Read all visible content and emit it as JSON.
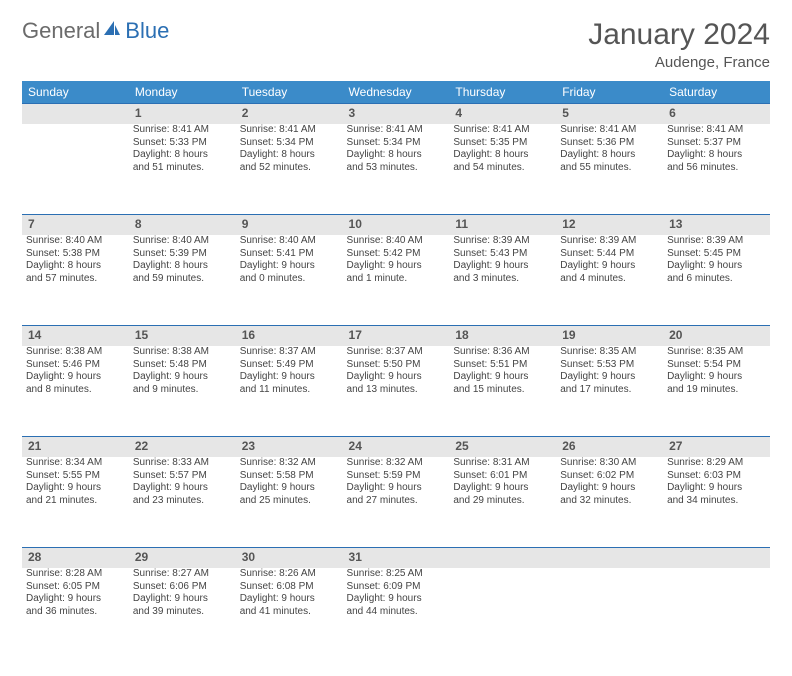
{
  "brand": {
    "part1": "General",
    "part2": "Blue"
  },
  "title": {
    "month": "January 2024",
    "location": "Audenge, France"
  },
  "dayHeaders": [
    "Sunday",
    "Monday",
    "Tuesday",
    "Wednesday",
    "Thursday",
    "Friday",
    "Saturday"
  ],
  "styling": {
    "header_bg": "#3b8bc9",
    "header_text": "#ffffff",
    "daynum_bg": "#e6e6e6",
    "daynum_border": "#2b6fb3",
    "body_text": "#444444",
    "title_text": "#555555",
    "logo_gray": "#6b6b6b",
    "logo_blue": "#2b6fb3",
    "th_fontsize": 12,
    "daynum_fontsize": 12,
    "detail_fontsize": 10
  },
  "weeks": [
    [
      null,
      {
        "n": "1",
        "sr": "Sunrise: 8:41 AM",
        "ss": "Sunset: 5:33 PM",
        "d1": "Daylight: 8 hours",
        "d2": "and 51 minutes."
      },
      {
        "n": "2",
        "sr": "Sunrise: 8:41 AM",
        "ss": "Sunset: 5:34 PM",
        "d1": "Daylight: 8 hours",
        "d2": "and 52 minutes."
      },
      {
        "n": "3",
        "sr": "Sunrise: 8:41 AM",
        "ss": "Sunset: 5:34 PM",
        "d1": "Daylight: 8 hours",
        "d2": "and 53 minutes."
      },
      {
        "n": "4",
        "sr": "Sunrise: 8:41 AM",
        "ss": "Sunset: 5:35 PM",
        "d1": "Daylight: 8 hours",
        "d2": "and 54 minutes."
      },
      {
        "n": "5",
        "sr": "Sunrise: 8:41 AM",
        "ss": "Sunset: 5:36 PM",
        "d1": "Daylight: 8 hours",
        "d2": "and 55 minutes."
      },
      {
        "n": "6",
        "sr": "Sunrise: 8:41 AM",
        "ss": "Sunset: 5:37 PM",
        "d1": "Daylight: 8 hours",
        "d2": "and 56 minutes."
      }
    ],
    [
      {
        "n": "7",
        "sr": "Sunrise: 8:40 AM",
        "ss": "Sunset: 5:38 PM",
        "d1": "Daylight: 8 hours",
        "d2": "and 57 minutes."
      },
      {
        "n": "8",
        "sr": "Sunrise: 8:40 AM",
        "ss": "Sunset: 5:39 PM",
        "d1": "Daylight: 8 hours",
        "d2": "and 59 minutes."
      },
      {
        "n": "9",
        "sr": "Sunrise: 8:40 AM",
        "ss": "Sunset: 5:41 PM",
        "d1": "Daylight: 9 hours",
        "d2": "and 0 minutes."
      },
      {
        "n": "10",
        "sr": "Sunrise: 8:40 AM",
        "ss": "Sunset: 5:42 PM",
        "d1": "Daylight: 9 hours",
        "d2": "and 1 minute."
      },
      {
        "n": "11",
        "sr": "Sunrise: 8:39 AM",
        "ss": "Sunset: 5:43 PM",
        "d1": "Daylight: 9 hours",
        "d2": "and 3 minutes."
      },
      {
        "n": "12",
        "sr": "Sunrise: 8:39 AM",
        "ss": "Sunset: 5:44 PM",
        "d1": "Daylight: 9 hours",
        "d2": "and 4 minutes."
      },
      {
        "n": "13",
        "sr": "Sunrise: 8:39 AM",
        "ss": "Sunset: 5:45 PM",
        "d1": "Daylight: 9 hours",
        "d2": "and 6 minutes."
      }
    ],
    [
      {
        "n": "14",
        "sr": "Sunrise: 8:38 AM",
        "ss": "Sunset: 5:46 PM",
        "d1": "Daylight: 9 hours",
        "d2": "and 8 minutes."
      },
      {
        "n": "15",
        "sr": "Sunrise: 8:38 AM",
        "ss": "Sunset: 5:48 PM",
        "d1": "Daylight: 9 hours",
        "d2": "and 9 minutes."
      },
      {
        "n": "16",
        "sr": "Sunrise: 8:37 AM",
        "ss": "Sunset: 5:49 PM",
        "d1": "Daylight: 9 hours",
        "d2": "and 11 minutes."
      },
      {
        "n": "17",
        "sr": "Sunrise: 8:37 AM",
        "ss": "Sunset: 5:50 PM",
        "d1": "Daylight: 9 hours",
        "d2": "and 13 minutes."
      },
      {
        "n": "18",
        "sr": "Sunrise: 8:36 AM",
        "ss": "Sunset: 5:51 PM",
        "d1": "Daylight: 9 hours",
        "d2": "and 15 minutes."
      },
      {
        "n": "19",
        "sr": "Sunrise: 8:35 AM",
        "ss": "Sunset: 5:53 PM",
        "d1": "Daylight: 9 hours",
        "d2": "and 17 minutes."
      },
      {
        "n": "20",
        "sr": "Sunrise: 8:35 AM",
        "ss": "Sunset: 5:54 PM",
        "d1": "Daylight: 9 hours",
        "d2": "and 19 minutes."
      }
    ],
    [
      {
        "n": "21",
        "sr": "Sunrise: 8:34 AM",
        "ss": "Sunset: 5:55 PM",
        "d1": "Daylight: 9 hours",
        "d2": "and 21 minutes."
      },
      {
        "n": "22",
        "sr": "Sunrise: 8:33 AM",
        "ss": "Sunset: 5:57 PM",
        "d1": "Daylight: 9 hours",
        "d2": "and 23 minutes."
      },
      {
        "n": "23",
        "sr": "Sunrise: 8:32 AM",
        "ss": "Sunset: 5:58 PM",
        "d1": "Daylight: 9 hours",
        "d2": "and 25 minutes."
      },
      {
        "n": "24",
        "sr": "Sunrise: 8:32 AM",
        "ss": "Sunset: 5:59 PM",
        "d1": "Daylight: 9 hours",
        "d2": "and 27 minutes."
      },
      {
        "n": "25",
        "sr": "Sunrise: 8:31 AM",
        "ss": "Sunset: 6:01 PM",
        "d1": "Daylight: 9 hours",
        "d2": "and 29 minutes."
      },
      {
        "n": "26",
        "sr": "Sunrise: 8:30 AM",
        "ss": "Sunset: 6:02 PM",
        "d1": "Daylight: 9 hours",
        "d2": "and 32 minutes."
      },
      {
        "n": "27",
        "sr": "Sunrise: 8:29 AM",
        "ss": "Sunset: 6:03 PM",
        "d1": "Daylight: 9 hours",
        "d2": "and 34 minutes."
      }
    ],
    [
      {
        "n": "28",
        "sr": "Sunrise: 8:28 AM",
        "ss": "Sunset: 6:05 PM",
        "d1": "Daylight: 9 hours",
        "d2": "and 36 minutes."
      },
      {
        "n": "29",
        "sr": "Sunrise: 8:27 AM",
        "ss": "Sunset: 6:06 PM",
        "d1": "Daylight: 9 hours",
        "d2": "and 39 minutes."
      },
      {
        "n": "30",
        "sr": "Sunrise: 8:26 AM",
        "ss": "Sunset: 6:08 PM",
        "d1": "Daylight: 9 hours",
        "d2": "and 41 minutes."
      },
      {
        "n": "31",
        "sr": "Sunrise: 8:25 AM",
        "ss": "Sunset: 6:09 PM",
        "d1": "Daylight: 9 hours",
        "d2": "and 44 minutes."
      },
      null,
      null,
      null
    ]
  ]
}
